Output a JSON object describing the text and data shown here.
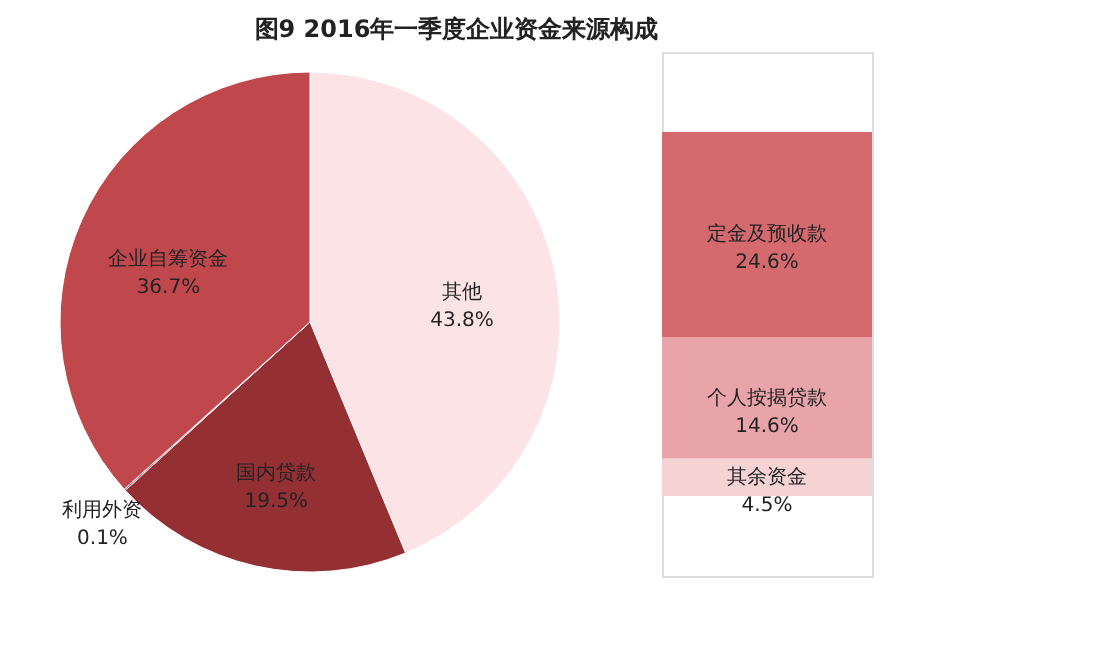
{
  "chart_data": [
    {
      "type": "pie",
      "title": "图9  2016年一季度企业资金来源构成",
      "categories": [
        "其他",
        "国内贷款",
        "利用外资",
        "企业自筹资金"
      ],
      "values": [
        43.8,
        19.5,
        0.1,
        36.7
      ],
      "colors": [
        "#fce4e6",
        "#943034",
        "#b03a3f",
        "#c0474b"
      ],
      "value_labels": [
        "43.8%",
        "19.5%",
        "0.1%",
        "36.7%"
      ],
      "legend": false
    },
    {
      "type": "bar",
      "stacked": true,
      "categories": [
        null
      ],
      "legend": false,
      "series": [
        {
          "name": "其余资金",
          "color": "#f5d3d5",
          "values": [
            4.5
          ],
          "value_labels": [
            "4.5%"
          ]
        },
        {
          "name": "个人按揭贷款",
          "color": "#e8a4a8",
          "values": [
            14.6
          ],
          "value_labels": [
            "14.6%"
          ]
        },
        {
          "name": "定金及预收款",
          "color": "#d46a6e",
          "values": [
            24.6
          ],
          "value_labels": [
            "24.6%"
          ]
        }
      ]
    }
  ]
}
